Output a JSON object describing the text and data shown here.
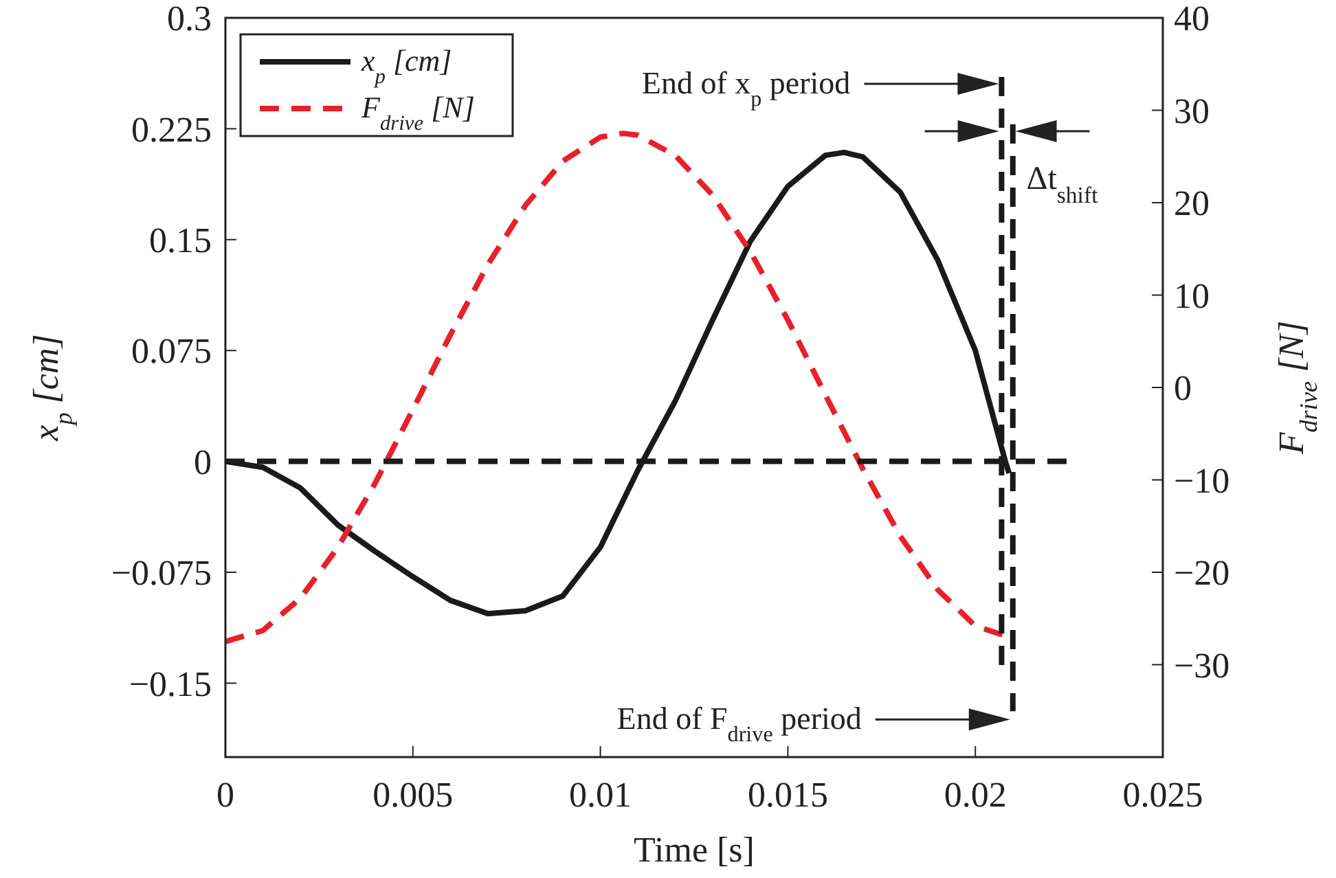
{
  "chart_data": {
    "type": "line",
    "xlabel": "Time [s]",
    "ylabel": "x$_{p}$ [cm]",
    "y2label": "F$_{drive}$ [N]",
    "xlim": [
      0,
      0.025
    ],
    "xticks": [
      0,
      0.005,
      0.01,
      0.015,
      0.02,
      0.025
    ],
    "ylim": [
      -0.2,
      0.3
    ],
    "yticks": [
      {
        "value": -0.15,
        "label": "−0.15"
      },
      {
        "value": -0.075,
        "label": "−0.075"
      },
      0,
      0.075,
      0.15,
      0.225,
      0.3
    ],
    "y2lim": [
      -40,
      40
    ],
    "y2ticks": [
      {
        "value": -30,
        "label": "−30"
      },
      {
        "value": -20,
        "label": "−20"
      },
      {
        "value": -10,
        "label": "−10"
      },
      0,
      10,
      20,
      30,
      40
    ],
    "grid": false,
    "legend": "top left",
    "marker": "none",
    "series": [
      {
        "name": "x$_{p}$ [cm]",
        "color": "#1a1a1a",
        "line_style": "solid",
        "x": [
          0,
          0.001,
          0.002,
          0.003,
          0.004,
          0.005,
          0.006,
          0.007,
          0.008,
          0.009,
          0.01,
          0.011,
          0.012,
          0.013,
          0.014,
          0.015,
          0.016,
          0.0165,
          0.017,
          0.018,
          0.019,
          0.02,
          0.0208,
          0.0209
        ],
        "values": [
          0,
          -0.004,
          -0.018,
          -0.043,
          -0.061,
          -0.078,
          -0.094,
          -0.103,
          -0.101,
          -0.091,
          -0.058,
          -0.006,
          0.041,
          0.096,
          0.149,
          0.186,
          0.207,
          0.209,
          0.206,
          0.182,
          0.136,
          0.075,
          0,
          -0.008
        ]
      },
      {
        "name": "F$_{drive}$ [N]",
        "color": "#e8202a",
        "line_style": "dashed",
        "axis": "y2",
        "x": [
          0,
          0.001,
          0.002,
          0.003,
          0.004,
          0.005,
          0.006,
          0.007,
          0.008,
          0.009,
          0.01,
          0.0106,
          0.011,
          0.012,
          0.013,
          0.014,
          0.015,
          0.016,
          0.017,
          0.018,
          0.019,
          0.02,
          0.0209
        ],
        "values": [
          -27.5,
          -26.3,
          -22.8,
          -17.3,
          -10.3,
          -2.4,
          5.7,
          13.3,
          19.7,
          24.5,
          27.1,
          27.5,
          27.3,
          25.1,
          20.8,
          14.7,
          7.3,
          -0.8,
          -8.8,
          -16.1,
          -21.9,
          -25.8,
          -27
        ]
      },
      {
        "color": "#1a1a1a",
        "line_style": "dashed",
        "x": [
          0,
          0.0226
        ],
        "values": [
          0,
          0
        ]
      },
      {
        "color": "#1a1a1a",
        "line_style": "dashed",
        "x": [
          0.0207,
          0.0207
        ],
        "values": [
          0.26,
          -0.138
        ]
      },
      {
        "color": "#1a1a1a",
        "line_style": "dashed",
        "x": [
          0.021,
          0.021
        ],
        "values": [
          0.228,
          -0.169
        ]
      }
    ],
    "annotations": [
      "End of x$_{p}$ period",
      "End of F$_{drive}$ period",
      "Δt$_{shift}$"
    ]
  }
}
